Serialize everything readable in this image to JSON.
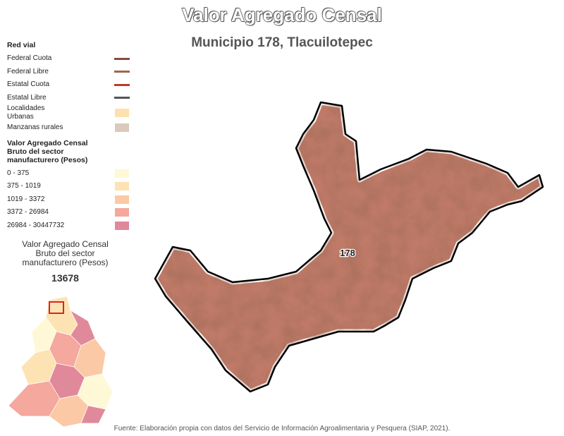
{
  "header": {
    "title": "Valor Agregado Censal",
    "subtitle": "Municipio 178, Tlacuilotepec"
  },
  "legend": {
    "road_title": "Red vial",
    "roads": [
      {
        "label": "Federal Cuota",
        "color": "#8b4a3c"
      },
      {
        "label": "Federal Libre",
        "color": "#a0664a"
      },
      {
        "label": "Estatal Cuota",
        "color": "#c0392b"
      },
      {
        "label": "Estatal Libre",
        "color": "#555555"
      }
    ],
    "areas": [
      {
        "label": "Localidades Urbanas",
        "color": "#fde0b0"
      },
      {
        "label": "Manzanas rurales",
        "color": "#dcc8bc"
      }
    ],
    "class_title": "Valor Agregado Censal Bruto del sector manufacturero (Pesos)",
    "classes": [
      {
        "label": "0 - 375",
        "color": "#fff8d6"
      },
      {
        "label": "375 - 1019",
        "color": "#fde3b4"
      },
      {
        "label": "1019 - 3372",
        "color": "#fbc9a6"
      },
      {
        "label": "3372 - 26984",
        "color": "#f4a89e"
      },
      {
        "label": "26984 - 30447732",
        "color": "#e0899a"
      }
    ]
  },
  "inset": {
    "caption": "Valor Agregado Censal Bruto del sector manufacturero (Pesos)",
    "value": 13678
  },
  "map": {
    "label": "178"
  },
  "footer": "Fuente: Elaboración propia con datos del Servicio de Información Agroalimentaria y Pesquera (SIAP, 2021)."
}
